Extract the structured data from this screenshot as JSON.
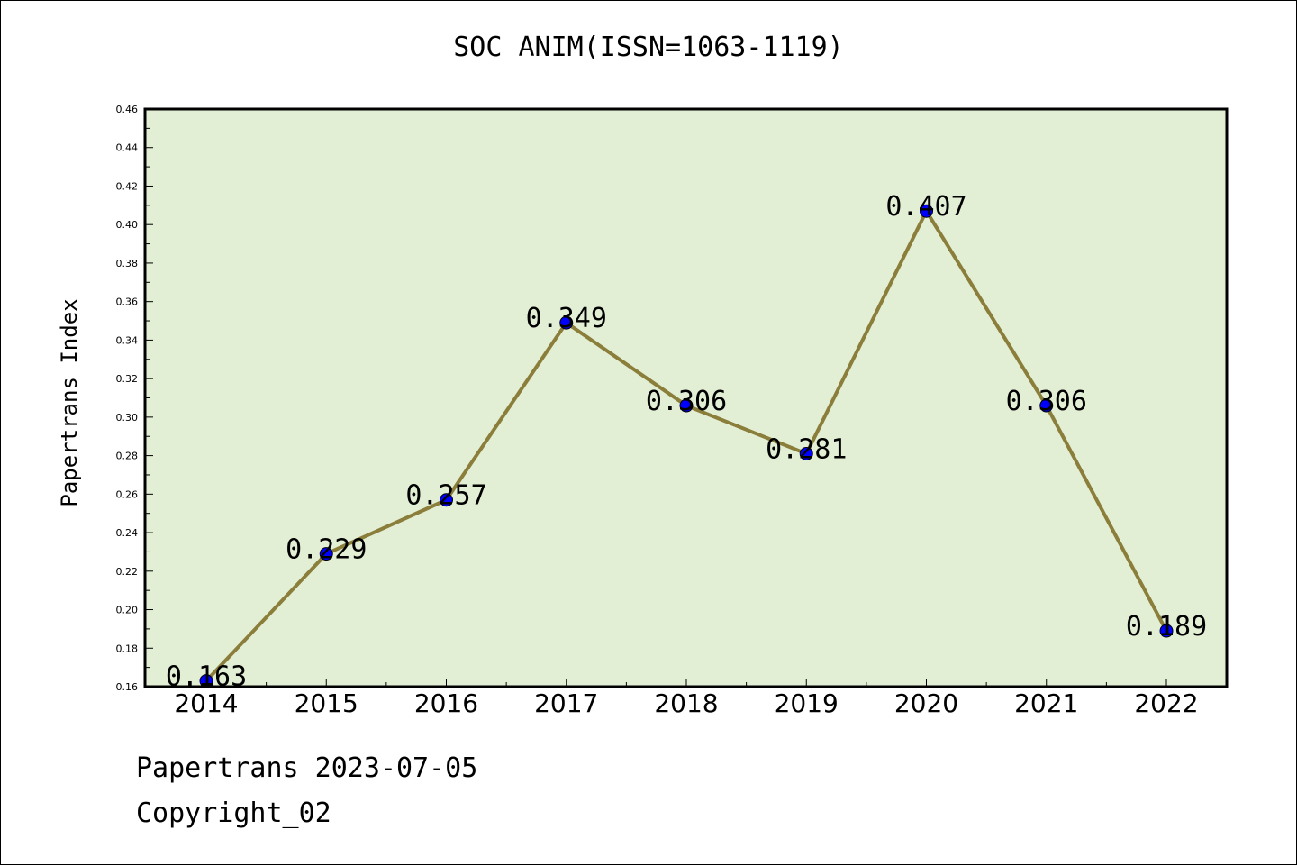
{
  "chart_data": {
    "type": "line",
    "title": "SOC ANIM(ISSN=1063-1119)",
    "ylabel": "Papertrans Index",
    "xlabel": "",
    "x": [
      "2014",
      "2015",
      "2016",
      "2017",
      "2018",
      "2019",
      "2020",
      "2021",
      "2022"
    ],
    "series": [
      {
        "values": [
          0.163,
          0.229,
          0.257,
          0.349,
          0.306,
          0.281,
          0.407,
          0.306,
          0.189
        ],
        "labels": [
          "0.163",
          "0.229",
          "0.257",
          "0.349",
          "0.306",
          "0.281",
          "0.407",
          "0.306",
          "0.189"
        ]
      }
    ],
    "ylim": [
      0.16,
      0.46
    ],
    "yticks": [
      "0.16",
      "0.18",
      "0.20",
      "0.22",
      "0.24",
      "0.26",
      "0.28",
      "0.30",
      "0.32",
      "0.34",
      "0.36",
      "0.38",
      "0.40",
      "0.42",
      "0.44",
      "0.46"
    ],
    "grid": false,
    "legend": "none",
    "colors": {
      "plot_background": "#e2efd5",
      "line": "#8b7d3a",
      "marker": "#0000ff"
    }
  },
  "footer": {
    "date_line": "Papertrans 2023-07-05",
    "copyright": "Copyright_02"
  }
}
